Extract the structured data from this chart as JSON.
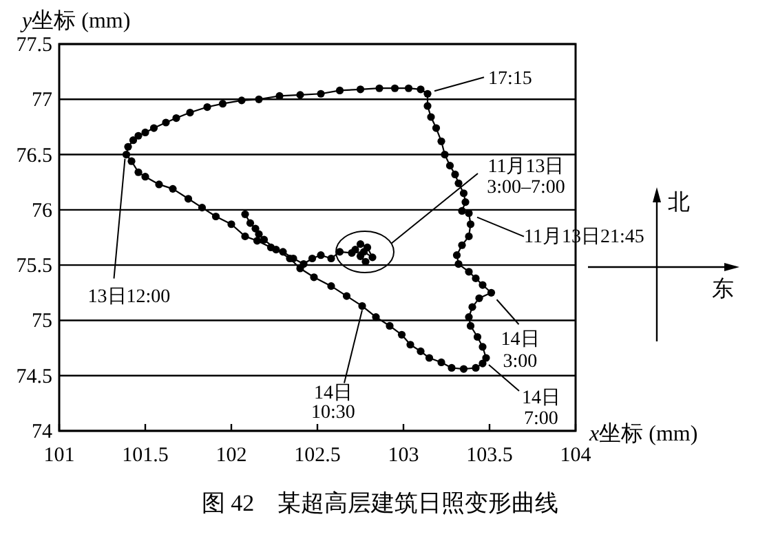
{
  "chart_data": {
    "type": "line",
    "title": "图 42　某超高层建筑日照变形曲线",
    "xlabel": "x坐标 (mm)",
    "ylabel": "y坐标 (mm)",
    "xlim": [
      101,
      104
    ],
    "ylim": [
      74,
      77.5
    ],
    "xticks": [
      101,
      101.5,
      102,
      102.5,
      103,
      103.5,
      104
    ],
    "yticks": [
      74,
      74.5,
      75,
      75.5,
      76,
      76.5,
      77,
      77.5
    ],
    "grid": "y",
    "marker": "circle",
    "line_style": "solid",
    "series": [
      {
        "color": "#000000",
        "x": [
          102.78,
          102.75,
          102.72,
          102.75,
          102.79,
          102.82,
          102.77,
          102.7,
          102.63,
          102.58,
          102.52,
          102.47,
          102.42,
          102.36,
          102.3,
          102.23,
          102.15,
          102.08,
          102.0,
          101.91,
          101.83,
          101.75,
          101.66,
          101.58,
          101.5,
          101.46,
          101.42,
          101.39,
          101.4,
          101.43,
          101.46,
          101.5,
          101.55,
          101.62,
          101.68,
          101.76,
          101.86,
          101.95,
          102.06,
          102.16,
          102.28,
          102.4,
          102.52,
          102.63,
          102.75,
          102.86,
          102.95,
          103.03,
          103.1,
          103.14,
          103.14,
          103.16,
          103.19,
          103.22,
          103.24,
          103.27,
          103.3,
          103.32,
          103.35,
          103.36,
          103.34,
          103.38,
          103.39,
          103.38,
          103.34,
          103.31,
          103.32,
          103.38,
          103.42,
          103.46,
          103.51,
          103.44,
          103.4,
          103.38,
          103.39,
          103.43,
          103.46,
          103.48,
          103.46,
          103.42,
          103.35,
          103.28,
          103.22,
          103.15,
          103.1,
          103.04,
          102.99,
          102.92,
          102.84,
          102.76,
          102.67,
          102.58,
          102.48,
          102.4,
          102.34,
          102.26,
          102.19,
          102.16,
          102.14,
          102.11,
          102.08
        ],
        "values": [
          75.53,
          75.58,
          75.64,
          75.69,
          75.66,
          75.57,
          75.62,
          75.61,
          75.62,
          75.56,
          75.59,
          75.56,
          75.51,
          75.56,
          75.62,
          75.66,
          75.72,
          75.76,
          75.87,
          75.94,
          76.02,
          76.1,
          76.19,
          76.23,
          76.3,
          76.34,
          76.44,
          76.5,
          76.57,
          76.63,
          76.67,
          76.7,
          76.74,
          76.79,
          76.83,
          76.88,
          76.93,
          76.96,
          76.99,
          77.0,
          77.03,
          77.04,
          77.05,
          77.08,
          77.09,
          77.1,
          77.1,
          77.1,
          77.09,
          77.05,
          76.94,
          76.84,
          76.74,
          76.62,
          76.5,
          76.4,
          76.32,
          76.24,
          76.15,
          76.07,
          75.99,
          75.97,
          75.87,
          75.76,
          75.68,
          75.59,
          75.51,
          75.44,
          75.38,
          75.32,
          75.25,
          75.2,
          75.12,
          75.03,
          74.95,
          74.85,
          74.76,
          74.66,
          74.61,
          74.57,
          74.56,
          74.57,
          74.62,
          74.66,
          74.72,
          74.78,
          74.87,
          74.95,
          75.03,
          75.13,
          75.22,
          75.31,
          75.39,
          75.47,
          75.56,
          75.64,
          75.73,
          75.78,
          75.83,
          75.88,
          75.96
        ]
      }
    ],
    "annotations": [
      {
        "text": "17:15",
        "x": 103.14,
        "y": 77.05
      },
      "11月13日\n3:00–7:00",
      {
        "text": "11月13日21:45",
        "x": 103.38,
        "y": 75.97
      },
      {
        "text": "14日\n3:00",
        "x": 103.51,
        "y": 75.25
      },
      {
        "text": "14日\n7:00",
        "x": 103.48,
        "y": 74.66
      },
      {
        "text": "14日\n10:30",
        "x": 102.76,
        "y": 75.13
      },
      {
        "text": "13日12:00",
        "x": 101.39,
        "y": 76.5
      },
      "北",
      "东"
    ]
  }
}
